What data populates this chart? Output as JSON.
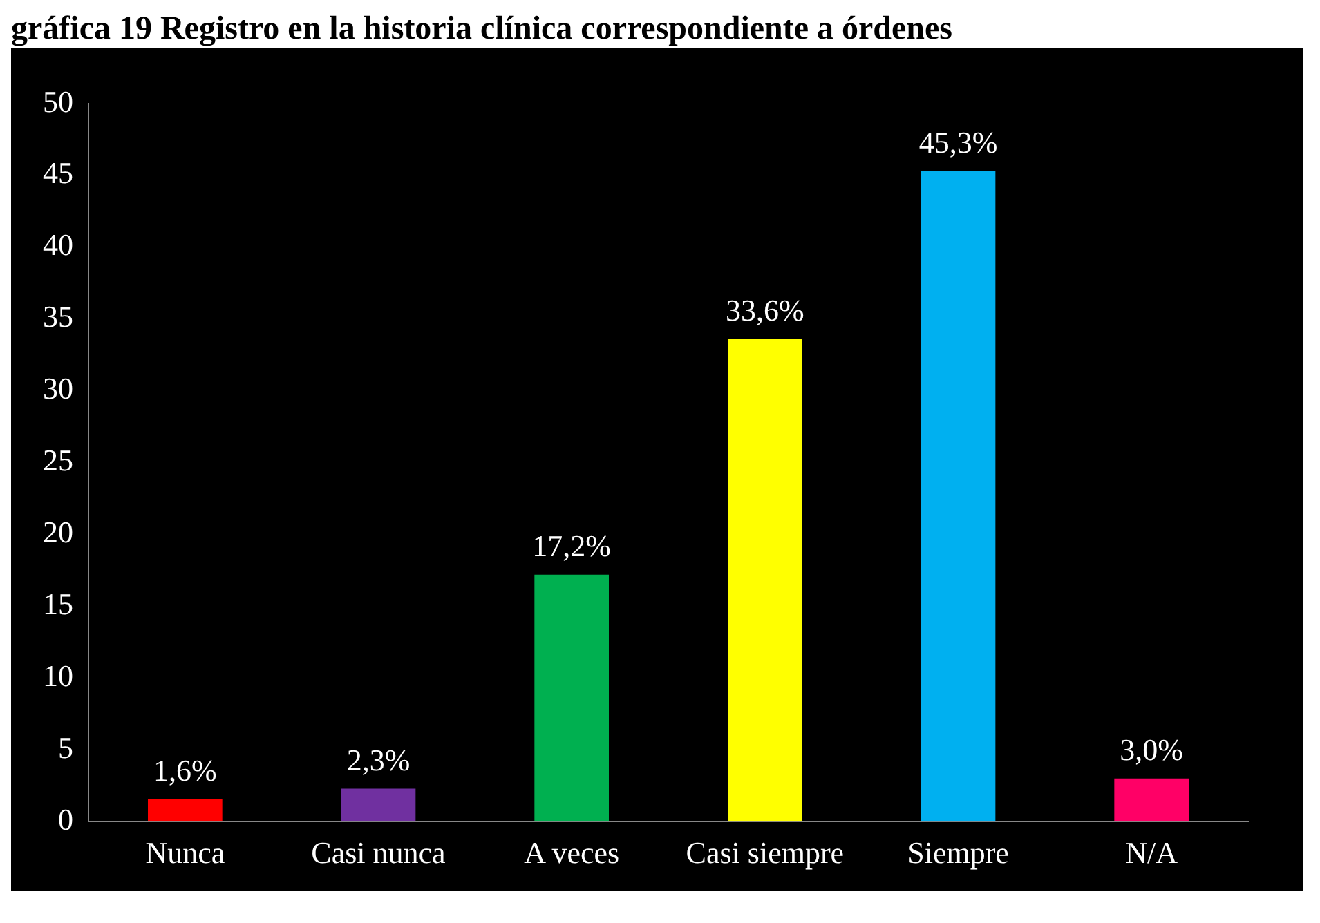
{
  "chart_data": {
    "type": "bar",
    "title": "gráfica 19 Registro en la historia clínica correspondiente a órdenes",
    "categories": [
      "Nunca",
      "Casi nunca",
      "A veces",
      "Casi siempre",
      "Siempre",
      "N/A"
    ],
    "values": [
      1.6,
      2.3,
      17.2,
      33.6,
      45.3,
      3.0
    ],
    "colors": [
      "#ff0000",
      "#7030a0",
      "#00b050",
      "#ffff00",
      "#00b0f0",
      "#ff0066"
    ],
    "value_labels": [
      "1,6%",
      "2,3%",
      "17,2%",
      "33,6%",
      "45,3%",
      "3,0%"
    ],
    "ylim": [
      0,
      50
    ],
    "yticks": [
      0,
      5,
      10,
      15,
      20,
      25,
      30,
      35,
      40,
      45,
      50
    ],
    "grid": false,
    "legend": false
  }
}
